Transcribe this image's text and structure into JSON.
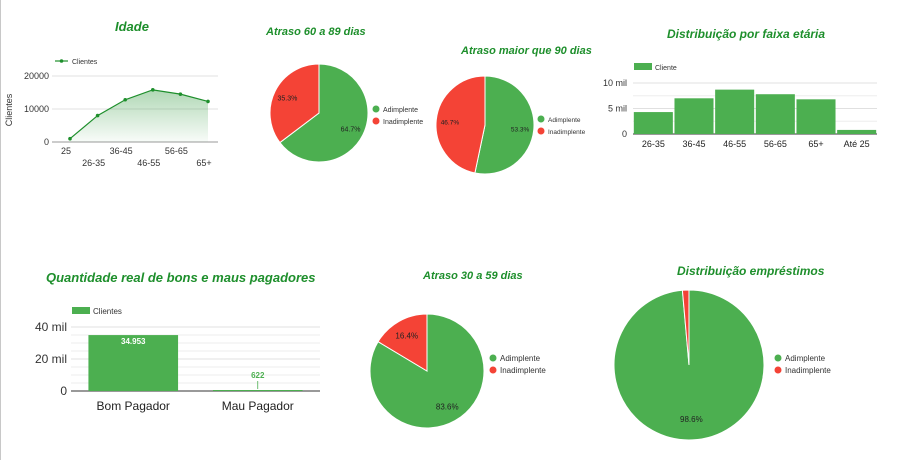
{
  "colors": {
    "green": "#4caf50",
    "red": "#f44336",
    "title": "#1e8f2c",
    "grid": "#e0e0e0",
    "axis": "#333333"
  },
  "chart_data": [
    {
      "id": "idade",
      "type": "area",
      "title": "Idade",
      "ylabel": "Clientes",
      "legend": "top-left",
      "grid": true,
      "categories": [
        "25",
        "26-35",
        "36-45",
        "46-55",
        "56-65",
        "65+"
      ],
      "series": [
        {
          "name": "Clientes",
          "values": [
            1000,
            8000,
            12800,
            15800,
            14500,
            12300
          ]
        }
      ],
      "ylim": [
        0,
        20000
      ],
      "yticks": [
        "0",
        "10000",
        "20000"
      ]
    },
    {
      "id": "atraso6089",
      "type": "pie",
      "title": "Atraso 60 a 89 dias",
      "legend": "right",
      "labels": [
        "Adimplente",
        "Inadimplente"
      ],
      "values": [
        64.7,
        35.3
      ],
      "value_labels": [
        "64.7%",
        "35.3%"
      ]
    },
    {
      "id": "atraso90",
      "type": "pie",
      "title": "Atraso maior que 90 dias",
      "legend": "right",
      "labels": [
        "Adimplente",
        "Inadimplente"
      ],
      "values": [
        53.3,
        46.7
      ],
      "value_labels": [
        "53.3%",
        "46.7%"
      ]
    },
    {
      "id": "faixa",
      "type": "bar",
      "title": "Distribuição por faixa etária",
      "legend": "top-left",
      "grid": true,
      "categories": [
        "26-35",
        "36-45",
        "46-55",
        "56-65",
        "65+",
        "Até 25"
      ],
      "series": [
        {
          "name": "Cliente",
          "values": [
            4300,
            7000,
            8700,
            7800,
            6800,
            800
          ]
        }
      ],
      "ylim": [
        0,
        10000
      ],
      "yticks": [
        "0",
        "5 mil",
        "10 mil"
      ]
    },
    {
      "id": "bonsmaus",
      "type": "bar",
      "title": "Quantidade real de bons e maus pagadores",
      "legend": "top-left",
      "grid": true,
      "categories": [
        "Bom Pagador",
        "Mau Pagador"
      ],
      "series": [
        {
          "name": "Clientes",
          "values": [
            34953,
            622
          ]
        }
      ],
      "value_labels": [
        "34.953",
        "622"
      ],
      "ylim": [
        0,
        40000
      ],
      "yticks": [
        "0",
        "20 mil",
        "40 mil"
      ]
    },
    {
      "id": "atraso3059",
      "type": "pie",
      "title": "Atraso 30 a 59 dias",
      "legend": "right",
      "labels": [
        "Adimplente",
        "Inadimplente"
      ],
      "values": [
        83.6,
        16.4
      ],
      "value_labels": [
        "83.6%",
        "16.4%"
      ]
    },
    {
      "id": "emprestimos",
      "type": "pie",
      "title": "Distribuição empréstimos",
      "legend": "right",
      "labels": [
        "Adimplente",
        "Inadimplente"
      ],
      "values": [
        98.6,
        1.4
      ],
      "value_labels": [
        "98.6%",
        ""
      ]
    }
  ]
}
